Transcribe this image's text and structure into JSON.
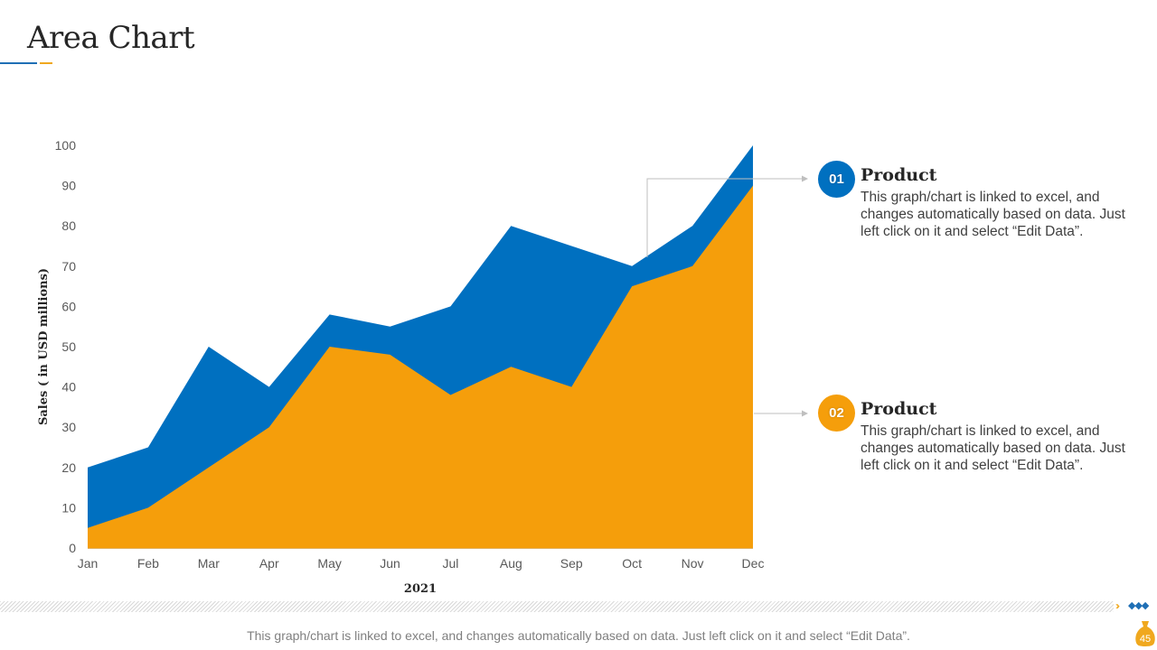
{
  "slide": {
    "title": "Area Chart",
    "footer_note": "This graph/chart is linked to excel, and changes automatically based on data. Just left click on it and select “Edit Data”.",
    "page_number": "45"
  },
  "colors": {
    "series_top": "#0070c0",
    "series_bottom": "#f59e0b",
    "accent_blue": "#1f6fb5",
    "accent_gold": "#f0a81e",
    "connector": "#bfbfbf"
  },
  "legend": [
    {
      "badge": "01",
      "title": "Product",
      "description": "This graph/chart is linked to excel, and changes automatically based on data. Just left click on it and select “Edit Data”.",
      "color": "#0070c0"
    },
    {
      "badge": "02",
      "title": "Product",
      "description": "This graph/chart is linked to excel, and changes automatically based on data. Just left click on it and select “Edit Data”.",
      "color": "#f59e0b"
    }
  ],
  "chart_data": {
    "type": "area",
    "title": "",
    "xlabel": "2021",
    "ylabel": "Sales  ( in USD millions)",
    "categories": [
      "Jan",
      "Feb",
      "Mar",
      "Apr",
      "May",
      "Jun",
      "Jul",
      "Aug",
      "Sep",
      "Oct",
      "Nov",
      "Dec"
    ],
    "yticks": [
      0,
      10,
      20,
      30,
      40,
      50,
      60,
      70,
      80,
      90,
      100
    ],
    "ylim": [
      0,
      100
    ],
    "grid": false,
    "legend_position": "right",
    "series": [
      {
        "name": "Product 01",
        "values": [
          20,
          25,
          50,
          40,
          58,
          55,
          60,
          80,
          75,
          70,
          80,
          100
        ]
      },
      {
        "name": "Product 02",
        "values": [
          5,
          10,
          20,
          30,
          50,
          48,
          38,
          45,
          40,
          65,
          70,
          90
        ]
      }
    ]
  }
}
